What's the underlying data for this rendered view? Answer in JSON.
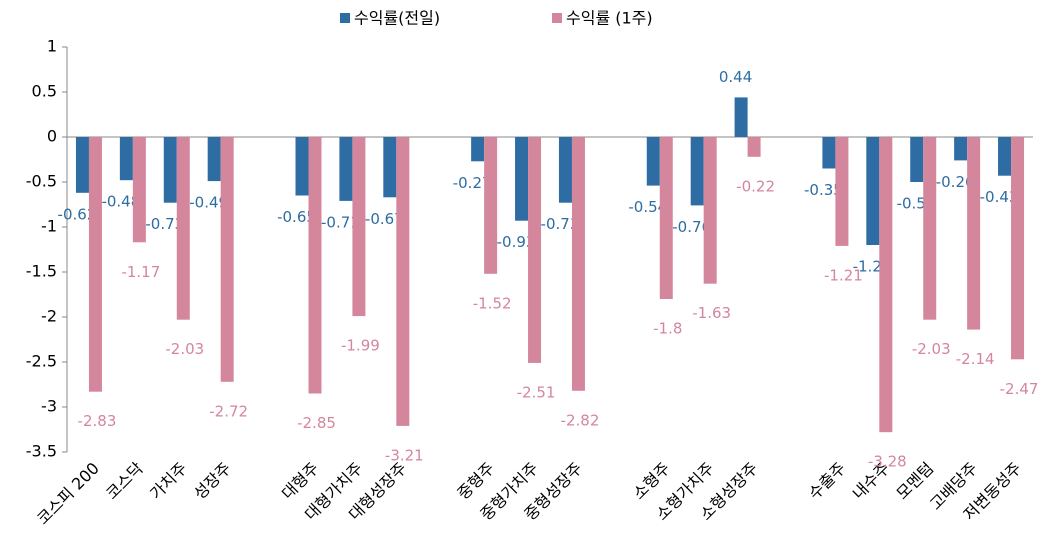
{
  "chart_data": {
    "type": "bar",
    "categories": [
      "코스피 200",
      "코스닥",
      "가치주",
      "성장주",
      null,
      "대형주",
      "대형가치주",
      "대형성장주",
      null,
      "중형주",
      "중형가치주",
      "중형성장주",
      null,
      "소형주",
      "소형가치주",
      "소형성장주",
      null,
      "수출주",
      "내수주",
      "모멘텀",
      "고배당주",
      "저변동성주"
    ],
    "series": [
      {
        "name": "수익률(전일)",
        "color": "#2e6ca4",
        "values": [
          -0.62,
          -0.48,
          -0.73,
          -0.49,
          null,
          -0.65,
          -0.71,
          -0.67,
          null,
          -0.27,
          -0.93,
          -0.73,
          null,
          -0.54,
          -0.76,
          0.44,
          null,
          -0.35,
          -1.2,
          -0.5,
          -0.26,
          -0.43
        ]
      },
      {
        "name": "수익률 (1주)",
        "color": "#d4879c",
        "values": [
          -2.83,
          -1.17,
          -2.03,
          -2.72,
          null,
          -2.85,
          -1.99,
          -3.21,
          null,
          -1.52,
          -2.51,
          -2.82,
          null,
          -1.8,
          -1.63,
          -0.22,
          null,
          -1.21,
          -3.28,
          -2.03,
          -2.14,
          -2.47
        ]
      }
    ],
    "ylim": [
      -3.5,
      1
    ],
    "yticks": [
      -3.5,
      -3,
      -2.5,
      -2,
      -1.5,
      -1,
      -0.5,
      0,
      0.5,
      1
    ],
    "legend": "top"
  }
}
